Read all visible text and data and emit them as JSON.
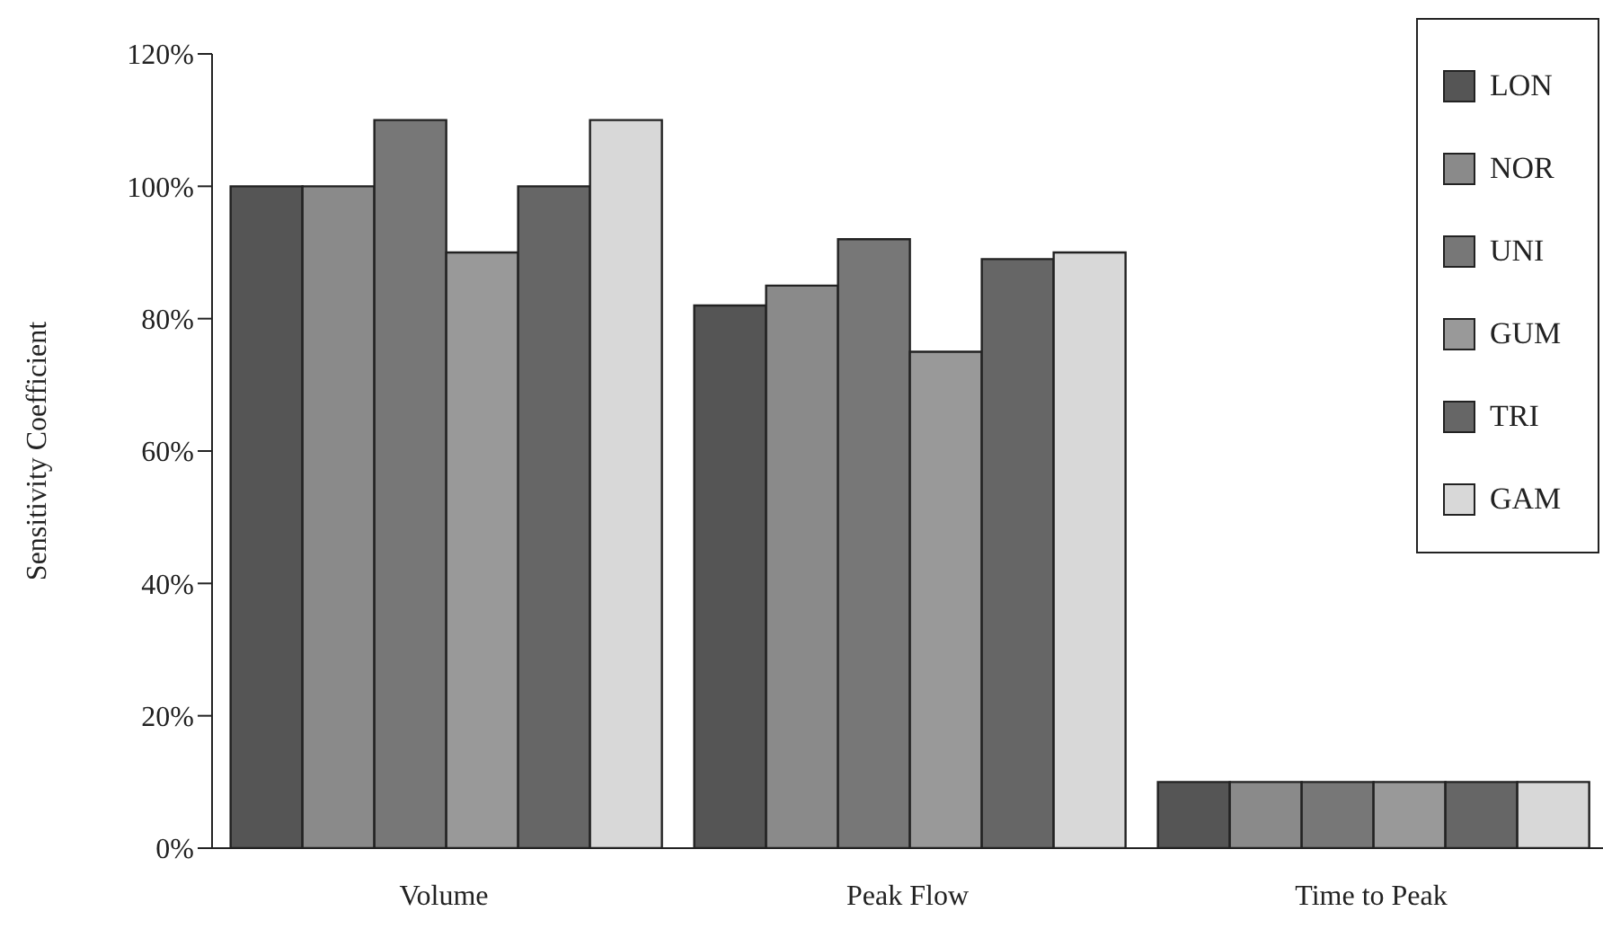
{
  "chart_data": {
    "type": "bar",
    "ylabel": "Sensitivity Coefficient",
    "categories": [
      "Volume",
      "Peak Flow",
      "Time to Peak"
    ],
    "series": [
      {
        "name": "LON",
        "color": "#555555",
        "values": [
          100,
          82,
          10
        ]
      },
      {
        "name": "NOR",
        "color": "#8a8a8a",
        "values": [
          100,
          85,
          10
        ]
      },
      {
        "name": "UNI",
        "color": "#777777",
        "values": [
          110,
          92,
          10
        ]
      },
      {
        "name": "GUM",
        "color": "#999999",
        "values": [
          90,
          75,
          10
        ]
      },
      {
        "name": "TRI",
        "color": "#666666",
        "values": [
          100,
          89,
          10
        ]
      },
      {
        "name": "GAM",
        "color": "#d8d8d8",
        "values": [
          110,
          90,
          10
        ]
      }
    ],
    "ylim": [
      0,
      120
    ],
    "yticks": [
      {
        "value": 0,
        "label": "0%"
      },
      {
        "value": 20,
        "label": "20%"
      },
      {
        "value": 40,
        "label": "40%"
      },
      {
        "value": 60,
        "label": "60%"
      },
      {
        "value": 80,
        "label": "80%"
      },
      {
        "value": 100,
        "label": "100%"
      },
      {
        "value": 120,
        "label": "120%"
      }
    ],
    "grid": false,
    "legend": "top right"
  }
}
